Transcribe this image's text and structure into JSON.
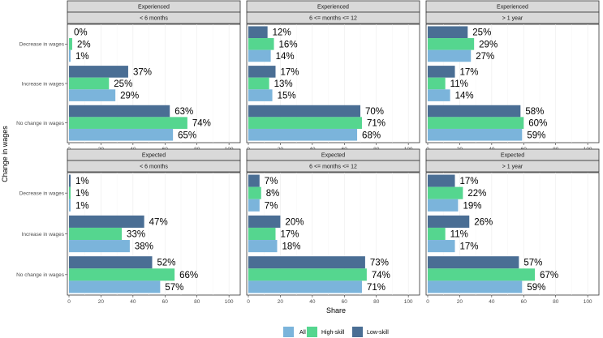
{
  "chart_data": {
    "type": "bar",
    "orientation": "horizontal",
    "xlabel": "Share",
    "ylabel": "Change in wages",
    "xlim": [
      0,
      105
    ],
    "xticks": [
      0,
      20,
      40,
      60,
      80,
      100
    ],
    "categories": [
      "Decrease in wages",
      "Increase in wages",
      "No change in wages"
    ],
    "series_order": [
      "Low-skill",
      "High-skill",
      "All"
    ],
    "legend": {
      "placement": "bottom",
      "entries": [
        {
          "name": "All",
          "color": "#7bb4db"
        },
        {
          "name": "High-skill",
          "color": "#55d68f"
        },
        {
          "name": "Low-skill",
          "color": "#4a6e94"
        }
      ]
    },
    "panels": [
      {
        "row_label": "Experienced",
        "col_label": "< 6 months",
        "values": {
          "Decrease in wages": {
            "Low-skill": 0,
            "High-skill": 2,
            "All": 1
          },
          "Increase in wages": {
            "Low-skill": 37,
            "High-skill": 25,
            "All": 29
          },
          "No change in wages": {
            "Low-skill": 63,
            "High-skill": 74,
            "All": 65
          }
        },
        "labels": {
          "Decrease in wages": {
            "Low-skill": "0%",
            "High-skill": "2%",
            "All": "1%"
          },
          "Increase in wages": {
            "Low-skill": "37%",
            "High-skill": "25%",
            "All": "29%"
          },
          "No change in wages": {
            "Low-skill": "63%",
            "High-skill": "74%",
            "All": "65%"
          }
        }
      },
      {
        "row_label": "Experienced",
        "col_label": "6 <= months <= 12",
        "values": {
          "Decrease in wages": {
            "Low-skill": 12,
            "High-skill": 16,
            "All": 14
          },
          "Increase in wages": {
            "Low-skill": 17,
            "High-skill": 13,
            "All": 15
          },
          "No change in wages": {
            "Low-skill": 70,
            "High-skill": 71,
            "All": 68
          }
        },
        "labels": {
          "Decrease in wages": {
            "Low-skill": "12%",
            "High-skill": "16%",
            "All": "14%"
          },
          "Increase in wages": {
            "Low-skill": "17%",
            "High-skill": "13%",
            "All": "15%"
          },
          "No change in wages": {
            "Low-skill": "70%",
            "High-skill": "71%",
            "All": "68%"
          }
        }
      },
      {
        "row_label": "Experienced",
        "col_label": "> 1 year",
        "values": {
          "Decrease in wages": {
            "Low-skill": 25,
            "High-skill": 29,
            "All": 27
          },
          "Increase in wages": {
            "Low-skill": 17,
            "High-skill": 11,
            "All": 14
          },
          "No change in wages": {
            "Low-skill": 58,
            "High-skill": 60,
            "All": 59
          }
        },
        "labels": {
          "Decrease in wages": {
            "Low-skill": "25%",
            "High-skill": "29%",
            "All": "27%"
          },
          "Increase in wages": {
            "Low-skill": "17%",
            "High-skill": "11%",
            "All": "14%"
          },
          "No change in wages": {
            "Low-skill": "58%",
            "High-skill": "60%",
            "All": "59%"
          }
        }
      },
      {
        "row_label": "Expected",
        "col_label": "< 6 months",
        "values": {
          "Decrease in wages": {
            "Low-skill": 1,
            "High-skill": 1,
            "All": 1
          },
          "Increase in wages": {
            "Low-skill": 47,
            "High-skill": 33,
            "All": 38
          },
          "No change in wages": {
            "Low-skill": 52,
            "High-skill": 66,
            "All": 57
          }
        },
        "labels": {
          "Decrease in wages": {
            "Low-skill": "1%",
            "High-skill": "1%",
            "All": "1%"
          },
          "Increase in wages": {
            "Low-skill": "47%",
            "High-skill": "33%",
            "All": "38%"
          },
          "No change in wages": {
            "Low-skill": "52%",
            "High-skill": "66%",
            "All": "57%"
          }
        }
      },
      {
        "row_label": "Expected",
        "col_label": "6 <= months <= 12",
        "values": {
          "Decrease in wages": {
            "Low-skill": 7,
            "High-skill": 8,
            "All": 7
          },
          "Increase in wages": {
            "Low-skill": 20,
            "High-skill": 17,
            "All": 18
          },
          "No change in wages": {
            "Low-skill": 73,
            "High-skill": 74,
            "All": 71
          }
        },
        "labels": {
          "Decrease in wages": {
            "Low-skill": "7%",
            "High-skill": "8%",
            "All": "7%"
          },
          "Increase in wages": {
            "Low-skill": "20%",
            "High-skill": "17%",
            "All": "18%"
          },
          "No change in wages": {
            "Low-skill": "73%",
            "High-skill": "74%",
            "All": "71%"
          }
        }
      },
      {
        "row_label": "Expected",
        "col_label": "> 1 year",
        "values": {
          "Decrease in wages": {
            "Low-skill": 17,
            "High-skill": 22,
            "All": 19
          },
          "Increase in wages": {
            "Low-skill": 26,
            "High-skill": 11,
            "All": 17
          },
          "No change in wages": {
            "Low-skill": 57,
            "High-skill": 67,
            "All": 59
          }
        },
        "labels": {
          "Decrease in wages": {
            "Low-skill": "17%",
            "High-skill": "22%",
            "All": "19%"
          },
          "Increase in wages": {
            "Low-skill": "26%",
            "High-skill": "11%",
            "All": "17%"
          },
          "No change in wages": {
            "Low-skill": "57%",
            "High-skill": "67%",
            "All": "59%"
          }
        }
      }
    ]
  }
}
